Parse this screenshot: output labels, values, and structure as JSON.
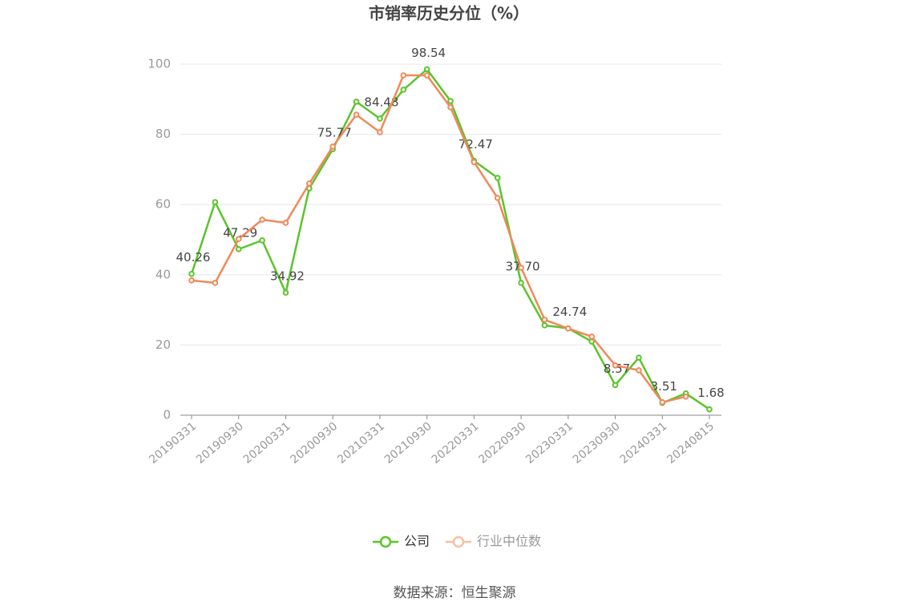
{
  "chart_data": {
    "type": "line",
    "title": "市销率历史分位（%）",
    "categories": [
      "20190331",
      null,
      "20190930",
      null,
      "20200331",
      null,
      "20200930",
      null,
      "20210331",
      null,
      "20210930",
      null,
      "20220331",
      null,
      "20220930",
      null,
      "20230331",
      null,
      "20230930",
      null,
      "20240331",
      null,
      "20240815"
    ],
    "series": [
      {
        "name": "公司",
        "color": "#5bc42a",
        "values": [
          40.26,
          60.7,
          47.29,
          49.8,
          34.92,
          64.6,
          75.77,
          89.3,
          84.48,
          92.7,
          98.54,
          89.5,
          72.47,
          67.6,
          37.7,
          25.6,
          24.74,
          21.0,
          8.57,
          16.4,
          3.51,
          6.2,
          1.68
        ],
        "value_labels": [
          "40.26",
          null,
          "47.29",
          null,
          "34.92",
          null,
          "75.77",
          null,
          "84.48",
          null,
          "98.54",
          null,
          "72.47",
          null,
          "37.70",
          null,
          "24.74",
          null,
          "8.57",
          null,
          "3.51",
          null,
          "1.68"
        ]
      },
      {
        "name": "行业中位数",
        "color": "#f0885a",
        "values": [
          38.4,
          37.7,
          50.2,
          55.7,
          54.8,
          66.0,
          76.5,
          85.6,
          80.6,
          96.8,
          96.8,
          87.7,
          72.1,
          61.9,
          42.0,
          27.2,
          24.7,
          22.4,
          14.2,
          12.8,
          3.7,
          5.3,
          null
        ]
      }
    ],
    "ylim": [
      0,
      100
    ],
    "yticks": [
      0,
      20,
      40,
      60,
      80,
      100
    ],
    "grid": true,
    "legend": "bottom",
    "source": "数据来源：恒生聚源"
  }
}
